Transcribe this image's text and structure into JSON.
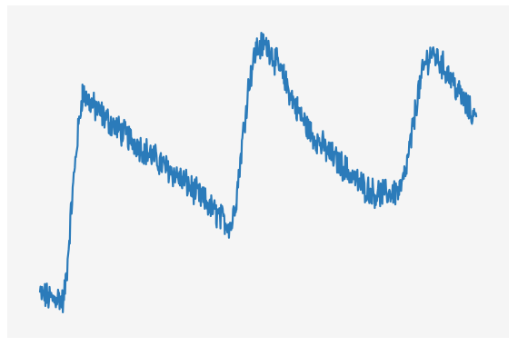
{
  "colors": {
    "plot_background": "#f5f5f5",
    "figure_background": "#ffffff",
    "series_line": "#2b7bba"
  },
  "chart_data": {
    "type": "line",
    "title": "",
    "xlabel": "",
    "ylabel": "",
    "axes_visible": false,
    "grid": false,
    "legend": "none",
    "xlim": [
      0,
      100
    ],
    "ylim": [
      0,
      1
    ],
    "series": [
      {
        "noisy": true,
        "points": [
          [
            0,
            0.09
          ],
          [
            1.4,
            0.08
          ],
          [
            2.8,
            0.07
          ],
          [
            4.1,
            0.08
          ],
          [
            5.2,
            0.06
          ],
          [
            6.0,
            0.18
          ],
          [
            7.0,
            0.4
          ],
          [
            8.2,
            0.62
          ],
          [
            9.4,
            0.79
          ],
          [
            12,
            0.74
          ],
          [
            16,
            0.68
          ],
          [
            20,
            0.63
          ],
          [
            24,
            0.58
          ],
          [
            28,
            0.53
          ],
          [
            32,
            0.48
          ],
          [
            36,
            0.42
          ],
          [
            39,
            0.37
          ],
          [
            41,
            0.34
          ],
          [
            42.4,
            0.33
          ],
          [
            43.5,
            0.43
          ],
          [
            44.8,
            0.62
          ],
          [
            46.2,
            0.82
          ],
          [
            47.8,
            0.94
          ],
          [
            49.5,
            0.96
          ],
          [
            51,
            0.94
          ],
          [
            54,
            0.84
          ],
          [
            57,
            0.73
          ],
          [
            60,
            0.65
          ],
          [
            64,
            0.58
          ],
          [
            68,
            0.52
          ],
          [
            71,
            0.47
          ],
          [
            74,
            0.44
          ],
          [
            77,
            0.44
          ],
          [
            79.6,
            0.45
          ],
          [
            80.8,
            0.5
          ],
          [
            82.2,
            0.63
          ],
          [
            83.6,
            0.78
          ],
          [
            85.2,
            0.89
          ],
          [
            86.6,
            0.93
          ],
          [
            88.5,
            0.9
          ],
          [
            91,
            0.84
          ],
          [
            93.5,
            0.77
          ],
          [
            95.4,
            0.72
          ],
          [
            96.6,
            0.7
          ]
        ]
      }
    ]
  }
}
